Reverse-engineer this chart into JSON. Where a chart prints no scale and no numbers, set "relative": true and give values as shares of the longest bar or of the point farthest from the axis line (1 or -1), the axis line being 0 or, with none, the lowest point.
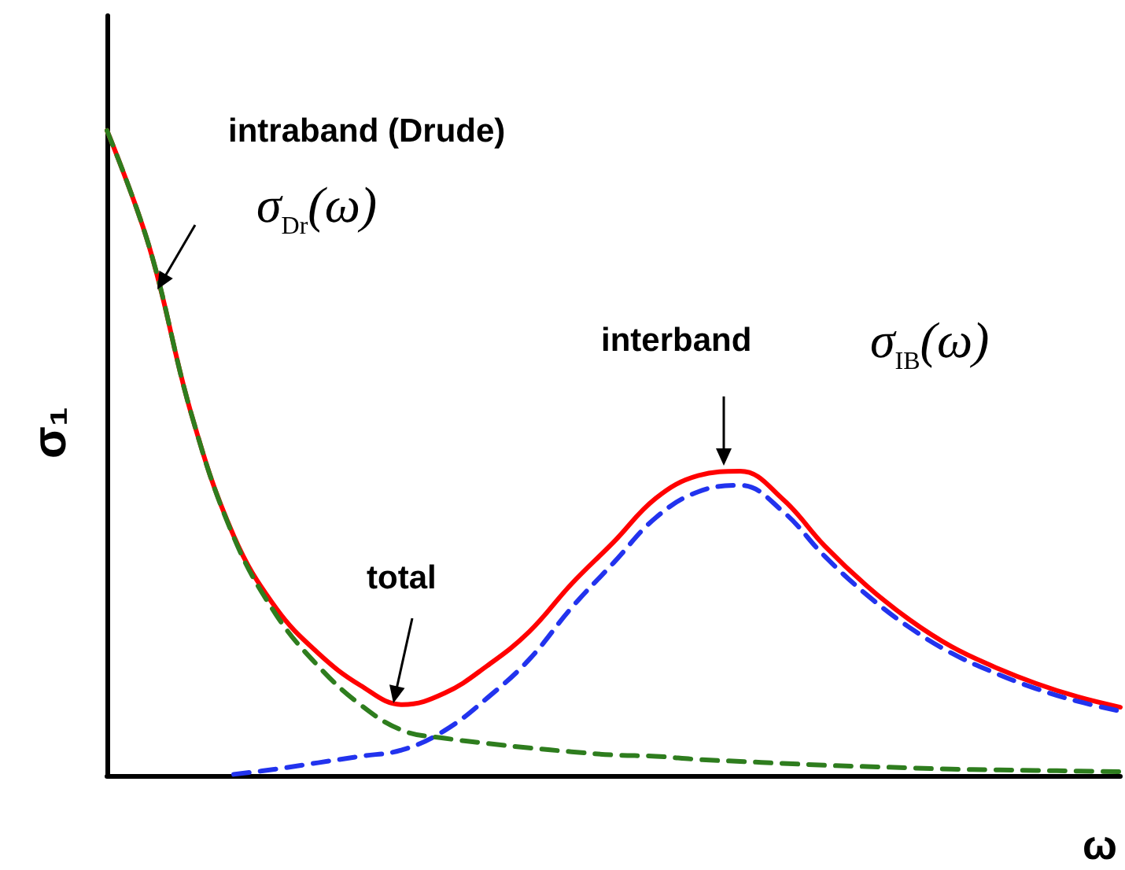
{
  "chart_data": {
    "type": "line",
    "relative": true,
    "xlabel": "ω",
    "ylabel": "σ₁",
    "grid": false,
    "marker": "none",
    "categories": [
      null,
      null,
      null,
      null,
      null,
      null,
      null,
      null,
      null,
      null,
      null,
      null,
      null,
      null,
      null,
      null,
      null,
      null,
      null,
      null,
      null,
      null,
      null,
      null,
      null
    ],
    "series": [
      {
        "color": "#ff0000",
        "line_style": "solid",
        "values": [
          1.0,
          0.82,
          0.56,
          0.372,
          0.26,
          0.19,
          0.14,
          0.11,
          0.128,
          0.17,
          0.223,
          0.297,
          0.362,
          0.43,
          0.465,
          0.472,
          0.429,
          0.356,
          0.294,
          0.242,
          0.2,
          0.169,
          0.143,
          0.122,
          0.106
        ]
      },
      {
        "color": "#2233ee",
        "line_style": "dashed",
        "values": [
          null,
          null,
          null,
          0.002,
          0.01,
          0.02,
          0.03,
          0.04,
          0.07,
          0.12,
          0.18,
          0.26,
          0.33,
          0.4,
          0.44,
          0.45,
          0.41,
          0.34,
          0.28,
          0.23,
          0.19,
          0.16,
          0.135,
          0.115,
          0.1
        ]
      },
      {
        "color": "#2e7d1e",
        "line_style": "dashed",
        "values": [
          1.0,
          0.82,
          0.56,
          0.37,
          0.25,
          0.17,
          0.11,
          0.07,
          0.058,
          0.05,
          0.043,
          0.037,
          0.032,
          0.03,
          0.025,
          0.022,
          0.019,
          0.016,
          0.014,
          0.012,
          0.01,
          0.009,
          0.008,
          0.007,
          0.006
        ]
      }
    ],
    "annotations": [
      "intraband (Drude)",
      "σ$_{Dr}$(ω)",
      "interband",
      "σ$_{IB}$(ω)",
      "total"
    ]
  }
}
